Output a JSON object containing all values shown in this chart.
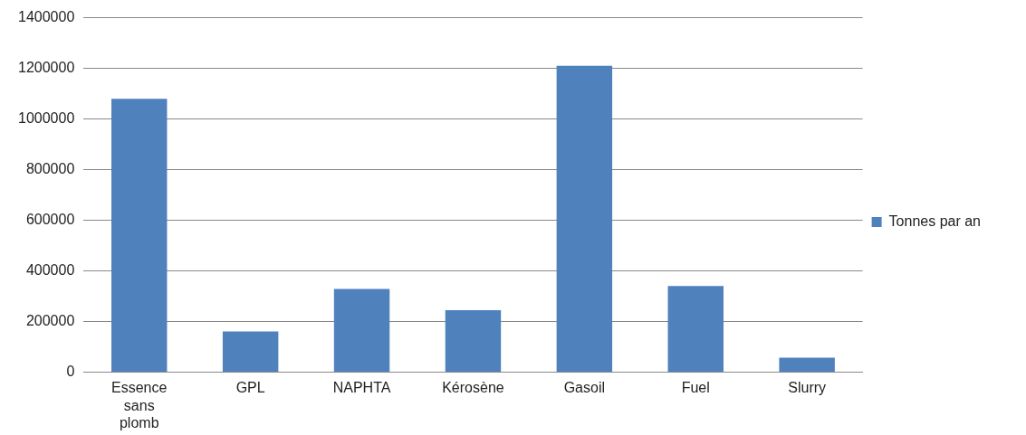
{
  "chart_data": {
    "type": "bar",
    "categories": [
      "Essence sans plomb",
      "GPL",
      "NAPHTA",
      "Kérosène",
      "Gasoil",
      "Fuel",
      "Slurry"
    ],
    "series": [
      {
        "name": "Tonnes par an",
        "color": "#4f81bd",
        "values": [
          1080000,
          160000,
          328000,
          244000,
          1210000,
          340000,
          57000
        ]
      }
    ],
    "ylim": [
      0,
      1400000
    ],
    "yticks": [
      0,
      200000,
      400000,
      600000,
      800000,
      1000000,
      1200000,
      1400000
    ],
    "grid": "y",
    "legend": "right"
  }
}
